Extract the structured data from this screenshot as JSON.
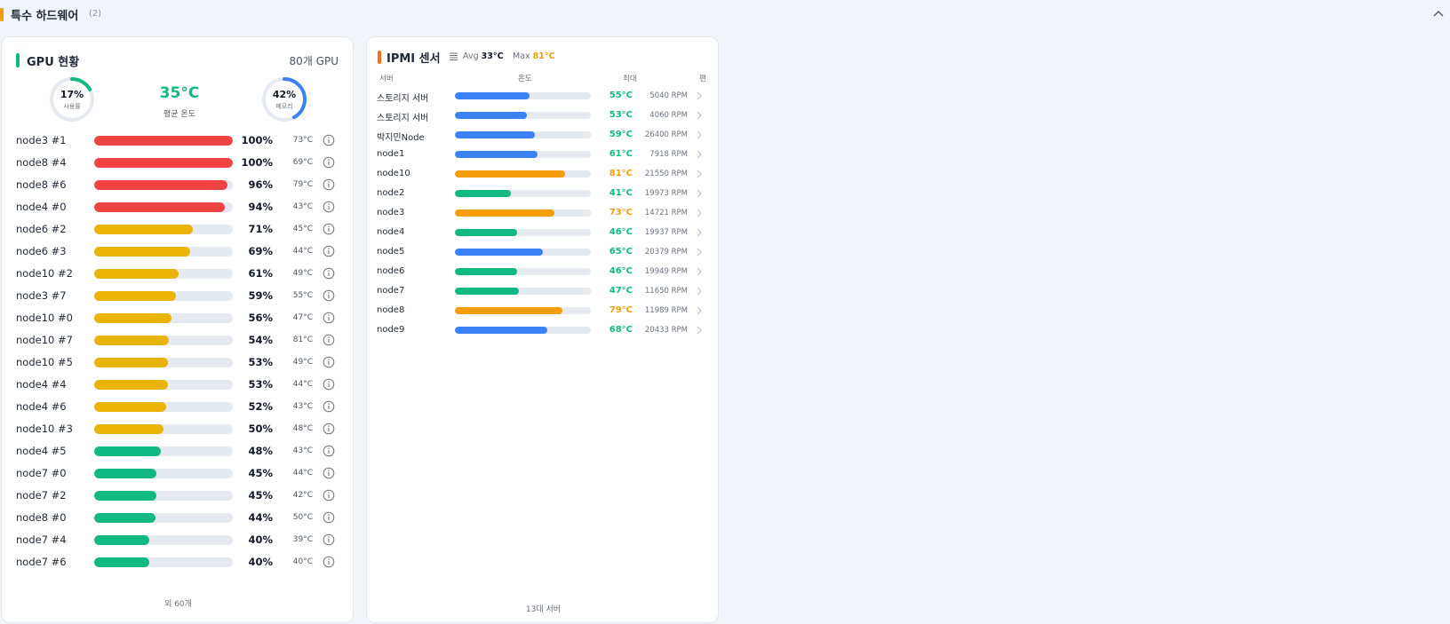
{
  "section": {
    "title": "특수 하드웨어",
    "count": "(2)"
  },
  "gpu": {
    "title": "GPU 현황",
    "total": "80개 GPU",
    "utilization": {
      "value": "17%",
      "label": "사용률",
      "fraction": 0.17
    },
    "avg_temp": {
      "value": "35°C",
      "label": "평균 온도"
    },
    "memory": {
      "value": "42%",
      "label": "메모리",
      "fraction": 0.42
    },
    "rows": [
      {
        "name": "node3 #1",
        "pct": "100%",
        "temp": "73°C",
        "level": 1.0
      },
      {
        "name": "node8 #4",
        "pct": "100%",
        "temp": "69°C",
        "level": 1.0
      },
      {
        "name": "node8 #6",
        "pct": "96%",
        "temp": "79°C",
        "level": 0.96
      },
      {
        "name": "node4 #0",
        "pct": "94%",
        "temp": "43°C",
        "level": 0.94
      },
      {
        "name": "node6 #2",
        "pct": "71%",
        "temp": "45°C",
        "level": 0.71
      },
      {
        "name": "node6 #3",
        "pct": "69%",
        "temp": "44°C",
        "level": 0.69
      },
      {
        "name": "node10 #2",
        "pct": "61%",
        "temp": "49°C",
        "level": 0.61
      },
      {
        "name": "node3 #7",
        "pct": "59%",
        "temp": "55°C",
        "level": 0.59
      },
      {
        "name": "node10 #0",
        "pct": "56%",
        "temp": "47°C",
        "level": 0.56
      },
      {
        "name": "node10 #7",
        "pct": "54%",
        "temp": "81°C",
        "level": 0.54
      },
      {
        "name": "node10 #5",
        "pct": "53%",
        "temp": "49°C",
        "level": 0.53
      },
      {
        "name": "node4 #4",
        "pct": "53%",
        "temp": "44°C",
        "level": 0.53
      },
      {
        "name": "node4 #6",
        "pct": "52%",
        "temp": "43°C",
        "level": 0.52
      },
      {
        "name": "node10 #3",
        "pct": "50%",
        "temp": "48°C",
        "level": 0.5
      },
      {
        "name": "node4 #5",
        "pct": "48%",
        "temp": "43°C",
        "level": 0.48
      },
      {
        "name": "node7 #0",
        "pct": "45%",
        "temp": "44°C",
        "level": 0.45
      },
      {
        "name": "node7 #2",
        "pct": "45%",
        "temp": "42°C",
        "level": 0.45
      },
      {
        "name": "node8 #0",
        "pct": "44%",
        "temp": "50°C",
        "level": 0.44
      },
      {
        "name": "node7 #4",
        "pct": "40%",
        "temp": "39°C",
        "level": 0.4
      },
      {
        "name": "node7 #6",
        "pct": "40%",
        "temp": "40°C",
        "level": 0.4
      }
    ],
    "more": "외 60개"
  },
  "ipmi": {
    "title": "IPMI 센서",
    "avg_label": "Avg",
    "avg_value": "33°C",
    "max_label": "Max",
    "max_value": "81°C",
    "headers": {
      "server": "서버",
      "temp": "온도",
      "max": "최대",
      "fan": "팬"
    },
    "rows": [
      {
        "name": "스토리지 서버",
        "temp": "55°C",
        "rpm": "5040 RPM",
        "level": 0.55,
        "status": "blue"
      },
      {
        "name": "스토리지 서버",
        "temp": "53°C",
        "rpm": "4060 RPM",
        "level": 0.53,
        "status": "blue"
      },
      {
        "name": "박지민Node",
        "temp": "59°C",
        "rpm": "26400 RPM",
        "level": 0.59,
        "status": "blue"
      },
      {
        "name": "node1",
        "temp": "61°C",
        "rpm": "7918 RPM",
        "level": 0.61,
        "status": "blue"
      },
      {
        "name": "node10",
        "temp": "81°C",
        "rpm": "21550 RPM",
        "level": 0.81,
        "status": "orange"
      },
      {
        "name": "node2",
        "temp": "41°C",
        "rpm": "19973 RPM",
        "level": 0.41,
        "status": "green"
      },
      {
        "name": "node3",
        "temp": "73°C",
        "rpm": "14721 RPM",
        "level": 0.73,
        "status": "orange"
      },
      {
        "name": "node4",
        "temp": "46°C",
        "rpm": "19937 RPM",
        "level": 0.46,
        "status": "green"
      },
      {
        "name": "node5",
        "temp": "65°C",
        "rpm": "20379 RPM",
        "level": 0.65,
        "status": "blue"
      },
      {
        "name": "node6",
        "temp": "46°C",
        "rpm": "19949 RPM",
        "level": 0.46,
        "status": "green"
      },
      {
        "name": "node7",
        "temp": "47°C",
        "rpm": "11650 RPM",
        "level": 0.47,
        "status": "green"
      },
      {
        "name": "node8",
        "temp": "79°C",
        "rpm": "11989 RPM",
        "level": 0.79,
        "status": "orange"
      },
      {
        "name": "node9",
        "temp": "68°C",
        "rpm": "20433 RPM",
        "level": 0.68,
        "status": "blue"
      }
    ],
    "more": "13대 서버"
  },
  "colors": {
    "red": "#ef4444",
    "yellow": "#eab308",
    "green": "#10b981",
    "blue": "#3b82f6",
    "orange": "#f59e0b",
    "track": "#e5e9f0",
    "temp_ok": "#10b981",
    "temp_warn": "#f59e0b"
  },
  "icons": {
    "collapse": "chevron-up-icon",
    "info": "info-icon",
    "list": "list-icon",
    "row_chevron": "chevron-right-icon"
  }
}
